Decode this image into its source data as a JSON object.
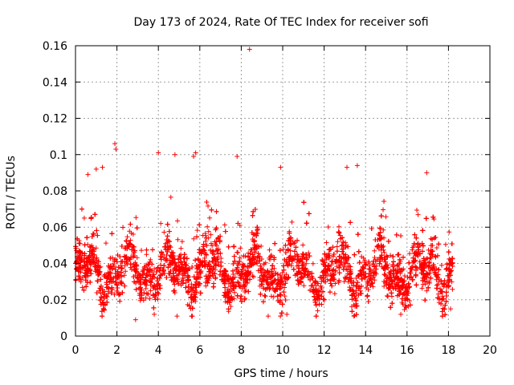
{
  "chart_data": {
    "type": "scatter",
    "title": "Day 173 of 2024, Rate Of TEC Index for receiver sofi",
    "xlabel": "GPS time / hours",
    "ylabel": "ROTI / TECUs",
    "xlim": [
      0,
      20
    ],
    "ylim": [
      0,
      0.16
    ],
    "x_ticks": [
      "0",
      "2",
      "4",
      "6",
      "8",
      "10",
      "12",
      "14",
      "16",
      "18",
      "20"
    ],
    "y_ticks": [
      "0",
      "0.02",
      "0.04",
      "0.06",
      "0.08",
      "0.1",
      "0.12",
      "0.14",
      "0.16"
    ],
    "grid": true,
    "marker": "+",
    "series_color": "#ff0000",
    "data_range_hours": [
      0,
      18.2
    ],
    "baseline_roti": 0.035,
    "typical_band": [
      0.015,
      0.07
    ],
    "notable_points": [
      {
        "x": 8.4,
        "y": 0.158
      },
      {
        "x": 1.9,
        "y": 0.106
      },
      {
        "x": 1.95,
        "y": 0.103
      },
      {
        "x": 4.0,
        "y": 0.101
      },
      {
        "x": 5.8,
        "y": 0.101
      },
      {
        "x": 5.7,
        "y": 0.099
      },
      {
        "x": 7.8,
        "y": 0.099
      },
      {
        "x": 4.8,
        "y": 0.1
      },
      {
        "x": 9.9,
        "y": 0.093
      },
      {
        "x": 13.1,
        "y": 0.093
      },
      {
        "x": 13.6,
        "y": 0.094
      },
      {
        "x": 1.0,
        "y": 0.092
      },
      {
        "x": 1.3,
        "y": 0.093
      },
      {
        "x": 0.6,
        "y": 0.089
      },
      {
        "x": 16.95,
        "y": 0.09
      },
      {
        "x": 2.9,
        "y": 0.009
      },
      {
        "x": 3.8,
        "y": 0.012
      },
      {
        "x": 4.9,
        "y": 0.011
      },
      {
        "x": 9.3,
        "y": 0.011
      },
      {
        "x": 10.2,
        "y": 0.012
      },
      {
        "x": 15.7,
        "y": 0.012
      },
      {
        "x": 18.1,
        "y": 0.015
      }
    ]
  }
}
